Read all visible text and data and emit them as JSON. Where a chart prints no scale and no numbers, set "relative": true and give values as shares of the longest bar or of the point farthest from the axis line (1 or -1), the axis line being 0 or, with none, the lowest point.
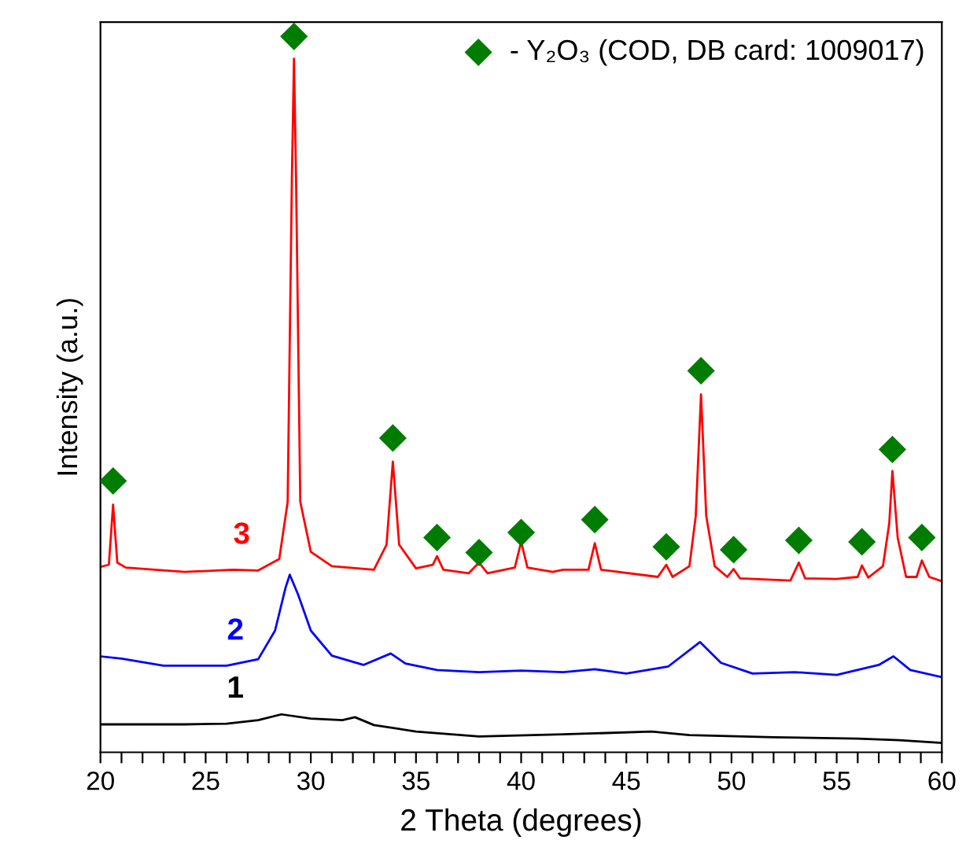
{
  "chart_data": {
    "type": "line",
    "relative": true,
    "xlabel": "2 Theta (degrees)",
    "ylabel": "Intensity (a.u.)",
    "xlim": [
      20,
      60
    ],
    "xticks": [
      20,
      {
        "value": 21,
        "label": null
      },
      {
        "value": 22,
        "label": null
      },
      {
        "value": 23,
        "label": null
      },
      {
        "value": 24,
        "label": null
      },
      25,
      {
        "value": 26,
        "label": null
      },
      {
        "value": 27,
        "label": null
      },
      {
        "value": 28,
        "label": null
      },
      {
        "value": 29,
        "label": null
      },
      30,
      {
        "value": 31,
        "label": null
      },
      {
        "value": 32,
        "label": null
      },
      {
        "value": 33,
        "label": null
      },
      {
        "value": 34,
        "label": null
      },
      35,
      {
        "value": 36,
        "label": null
      },
      {
        "value": 37,
        "label": null
      },
      {
        "value": 38,
        "label": null
      },
      {
        "value": 39,
        "label": null
      },
      40,
      {
        "value": 41,
        "label": null
      },
      {
        "value": 42,
        "label": null
      },
      {
        "value": 43,
        "label": null
      },
      {
        "value": 44,
        "label": null
      },
      45,
      {
        "value": 46,
        "label": null
      },
      {
        "value": 47,
        "label": null
      },
      {
        "value": 48,
        "label": null
      },
      {
        "value": 49,
        "label": null
      },
      50,
      {
        "value": 51,
        "label": null
      },
      {
        "value": 52,
        "label": null
      },
      {
        "value": 53,
        "label": null
      },
      {
        "value": 54,
        "label": null
      },
      55,
      {
        "value": 56,
        "label": null
      },
      {
        "value": 57,
        "label": null
      },
      {
        "value": 58,
        "label": null
      },
      {
        "value": 59,
        "label": null
      },
      60
    ],
    "grid": false,
    "legend": "top right",
    "tick_labels": "x",
    "series": [
      {
        "name": "1",
        "color": "#000000",
        "x": [
          20,
          24,
          26,
          27.5,
          28.6,
          30,
          31.5,
          32.1,
          33,
          35,
          38,
          42,
          46.2,
          48,
          52,
          56,
          58,
          60
        ],
        "values": [
          0.039,
          0.039,
          0.04,
          0.045,
          0.053,
          0.047,
          0.045,
          0.049,
          0.038,
          0.029,
          0.022,
          0.025,
          0.029,
          0.024,
          0.021,
          0.019,
          0.017,
          0.013
        ]
      },
      {
        "name": "2",
        "color": "#0000ff",
        "x": [
          20,
          21,
          23,
          26,
          27.5,
          28.3,
          28.8,
          29.0,
          29.4,
          30,
          31,
          32.5,
          33.8,
          34.5,
          36,
          38,
          40,
          42,
          43.5,
          45,
          47,
          48.5,
          49.5,
          51,
          53,
          55,
          57,
          57.7,
          58.5,
          60
        ],
        "values": [
          0.134,
          0.131,
          0.121,
          0.121,
          0.13,
          0.17,
          0.23,
          0.248,
          0.22,
          0.17,
          0.135,
          0.122,
          0.138,
          0.124,
          0.115,
          0.112,
          0.114,
          0.112,
          0.116,
          0.11,
          0.12,
          0.154,
          0.125,
          0.11,
          0.112,
          0.108,
          0.122,
          0.134,
          0.115,
          0.105
        ]
      },
      {
        "name": "3",
        "color": "#ff0000",
        "x": [
          20,
          20.4,
          20.6,
          20.8,
          21.2,
          24,
          26.3,
          27.5,
          28.5,
          28.9,
          29.1,
          29.2,
          29.3,
          29.5,
          30,
          31,
          33,
          33.6,
          33.9,
          34.2,
          35,
          35.8,
          36.0,
          36.3,
          37.5,
          38.0,
          38.4,
          39.7,
          40.0,
          40.3,
          41.5,
          42,
          43.2,
          43.5,
          43.8,
          46.5,
          46.9,
          47.2,
          48.0,
          48.3,
          48.55,
          48.8,
          49.2,
          49.8,
          50.1,
          50.4,
          52.8,
          53.2,
          53.5,
          55,
          56.0,
          56.2,
          56.5,
          57.2,
          57.5,
          57.65,
          57.9,
          58.3,
          58.8,
          59.05,
          59.4,
          60
        ],
        "values": [
          0.259,
          0.262,
          0.346,
          0.265,
          0.258,
          0.252,
          0.255,
          0.254,
          0.27,
          0.35,
          0.8,
          0.969,
          0.8,
          0.35,
          0.28,
          0.26,
          0.255,
          0.29,
          0.406,
          0.29,
          0.257,
          0.262,
          0.274,
          0.255,
          0.25,
          0.265,
          0.25,
          0.258,
          0.294,
          0.258,
          0.252,
          0.255,
          0.255,
          0.292,
          0.255,
          0.245,
          0.262,
          0.245,
          0.26,
          0.33,
          0.5,
          0.33,
          0.26,
          0.245,
          0.256,
          0.243,
          0.24,
          0.265,
          0.243,
          0.242,
          0.245,
          0.261,
          0.244,
          0.26,
          0.32,
          0.393,
          0.3,
          0.245,
          0.245,
          0.268,
          0.245,
          0.239
        ]
      },
      {
        "type": "scatter",
        "marker": "diamond",
        "name": "- Y₂O₃ (COD, DB card: 1009017)",
        "color": "#007d00",
        "x": [
          20.6,
          29.2,
          33.9,
          36.0,
          38.0,
          40.0,
          43.5,
          46.9,
          48.55,
          50.1,
          53.2,
          56.2,
          57.65,
          59.05
        ],
        "values": [
          0.379,
          1.0,
          0.439,
          0.3,
          0.279,
          0.307,
          0.325,
          0.287,
          0.533,
          0.283,
          0.296,
          0.294,
          0.423,
          0.3
        ]
      }
    ]
  }
}
